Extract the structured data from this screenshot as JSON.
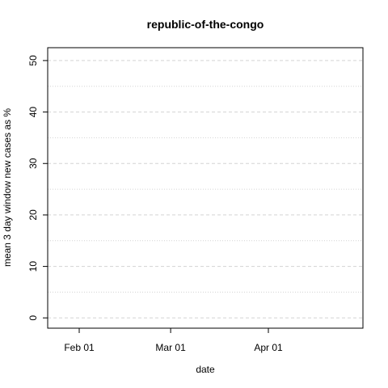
{
  "chart_data": {
    "type": "line",
    "title": "republic-of-the-congo",
    "xlabel": "date",
    "ylabel": "mean  3  day window new cases as %",
    "xlim": [
      "2020-01-22",
      "2020-05-01"
    ],
    "ylim": [
      -2,
      52.5
    ],
    "x_ticks": [
      {
        "date": "2020-02-01",
        "label": "Feb 01"
      },
      {
        "date": "2020-03-01",
        "label": "Mar 01"
      },
      {
        "date": "2020-04-01",
        "label": "Apr 01"
      }
    ],
    "y_ticks": [
      0,
      10,
      20,
      30,
      40,
      50
    ],
    "y_minor_gridlines": [
      5,
      15,
      25,
      35,
      45
    ],
    "grid": true,
    "series": [
      {
        "values": []
      }
    ],
    "colors": {
      "frame": "#000000",
      "grid": "#d3d3d3"
    }
  }
}
